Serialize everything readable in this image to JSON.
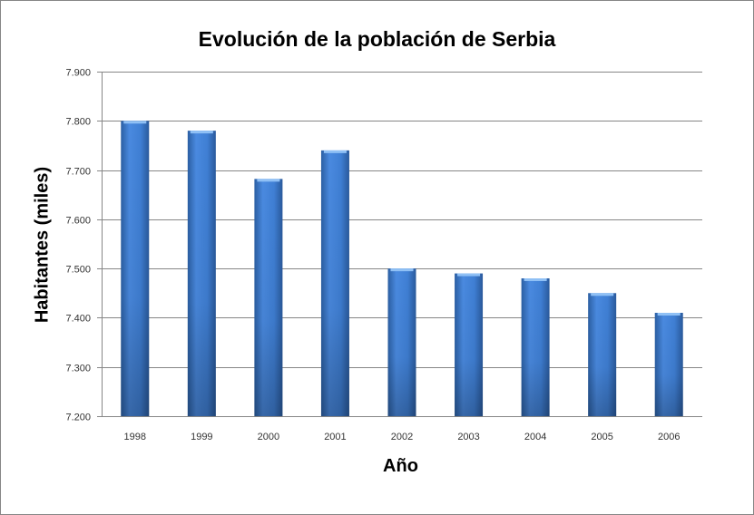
{
  "chart_data": {
    "type": "bar",
    "title": "Evolución de la población de Serbia",
    "xlabel": "Año",
    "ylabel": "Habitantes (miles)",
    "categories": [
      "1998",
      "1999",
      "2000",
      "2001",
      "2002",
      "2003",
      "2004",
      "2005",
      "2006"
    ],
    "values": [
      7800,
      7780,
      7682,
      7740,
      7500,
      7490,
      7480,
      7450,
      7410
    ],
    "ylim": [
      7200,
      7900
    ],
    "yticks": [
      "7.200",
      "7.300",
      "7.400",
      "7.500",
      "7.600",
      "7.700",
      "7.800",
      "7.900"
    ],
    "grid": true,
    "legend": "none",
    "bar_color": "#3C7DD0"
  }
}
